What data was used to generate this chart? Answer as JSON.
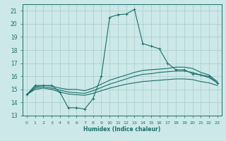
{
  "xlabel": "Humidex (Indice chaleur)",
  "xlim": [
    -0.5,
    23.5
  ],
  "ylim": [
    13,
    21.5
  ],
  "xticks": [
    0,
    1,
    2,
    3,
    4,
    5,
    6,
    7,
    8,
    9,
    10,
    11,
    12,
    13,
    14,
    15,
    16,
    17,
    18,
    19,
    20,
    21,
    22,
    23
  ],
  "yticks": [
    13,
    14,
    15,
    16,
    17,
    18,
    19,
    20,
    21
  ],
  "bg_color": "#cce8e8",
  "line_color": "#1a6e6a",
  "grid_color": "#a8cccc",
  "line1_x": [
    0,
    1,
    2,
    3,
    4,
    5,
    6,
    7,
    8,
    9,
    10,
    11,
    12,
    13,
    14,
    15,
    16,
    17,
    18,
    19,
    20,
    21,
    22,
    23
  ],
  "line1_y": [
    14.6,
    15.3,
    15.3,
    15.3,
    14.8,
    13.6,
    13.6,
    13.5,
    14.3,
    16.0,
    20.5,
    20.7,
    20.75,
    21.1,
    18.5,
    18.3,
    18.1,
    17.0,
    16.5,
    16.5,
    16.2,
    16.1,
    16.0,
    15.5
  ],
  "line2_x": [
    0,
    1,
    2,
    3,
    4,
    5,
    6,
    7,
    8,
    9,
    10,
    11,
    12,
    13,
    14,
    15,
    16,
    17,
    18,
    19,
    20,
    21,
    22,
    23
  ],
  "line2_y": [
    14.6,
    15.2,
    15.3,
    15.25,
    15.1,
    15.0,
    15.0,
    14.9,
    15.1,
    15.4,
    15.7,
    15.9,
    16.1,
    16.3,
    16.45,
    16.5,
    16.55,
    16.6,
    16.7,
    16.7,
    16.6,
    16.3,
    16.1,
    15.6
  ],
  "line3_x": [
    0,
    1,
    2,
    3,
    4,
    5,
    6,
    7,
    8,
    9,
    10,
    11,
    12,
    13,
    14,
    15,
    16,
    17,
    18,
    19,
    20,
    21,
    22,
    23
  ],
  "line3_y": [
    14.6,
    15.1,
    15.2,
    15.1,
    14.95,
    14.8,
    14.75,
    14.7,
    14.9,
    15.15,
    15.4,
    15.6,
    15.8,
    16.0,
    16.15,
    16.2,
    16.3,
    16.35,
    16.4,
    16.4,
    16.3,
    16.1,
    15.9,
    15.5
  ],
  "line4_x": [
    0,
    1,
    2,
    3,
    4,
    5,
    6,
    7,
    8,
    9,
    10,
    11,
    12,
    13,
    14,
    15,
    16,
    17,
    18,
    19,
    20,
    21,
    22,
    23
  ],
  "line4_y": [
    14.6,
    15.0,
    15.1,
    15.0,
    14.8,
    14.65,
    14.6,
    14.55,
    14.7,
    14.9,
    15.1,
    15.25,
    15.4,
    15.5,
    15.6,
    15.65,
    15.7,
    15.75,
    15.8,
    15.8,
    15.75,
    15.6,
    15.5,
    15.3
  ]
}
